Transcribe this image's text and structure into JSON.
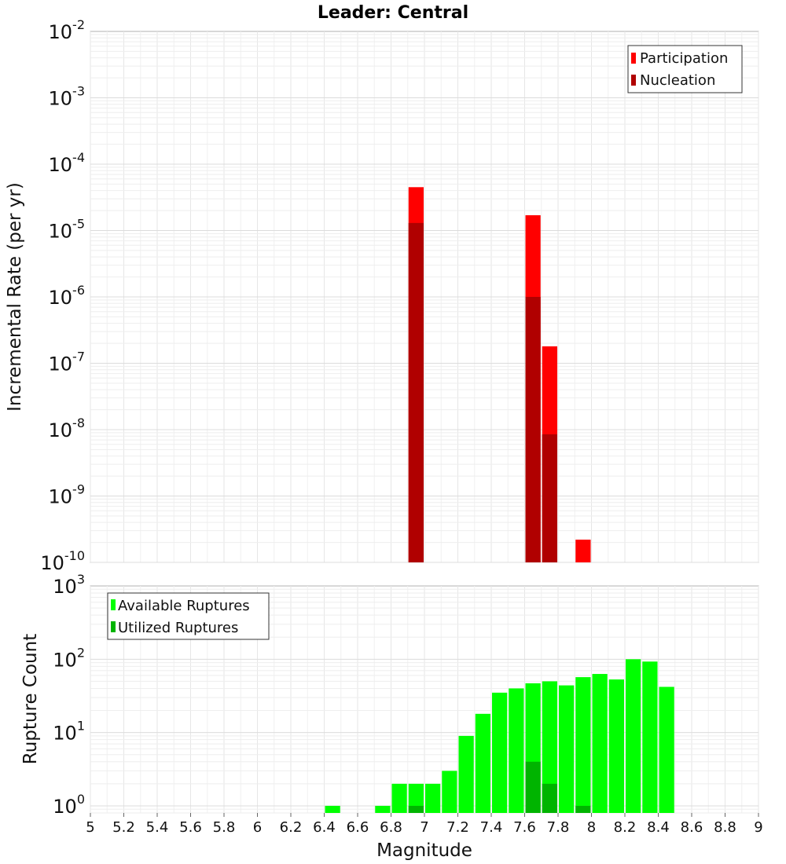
{
  "chart_data": [
    {
      "type": "bar",
      "title": "Leader: Central",
      "xlabel": "",
      "ylabel": "Incremental Rate (per yr)",
      "xlim": [
        5,
        9
      ],
      "ylim": [
        1e-10,
        0.01
      ],
      "y_scale": "log",
      "y_tick_exponents": [
        -10,
        -9,
        -8,
        -7,
        -6,
        -5,
        -4,
        -3,
        -2
      ],
      "bin_width": 0.1,
      "grid": true,
      "legend_position": "top-right",
      "series": [
        {
          "name": "Participation",
          "color": "#ff0000",
          "points": [
            [
              6.95,
              4.5e-05
            ],
            [
              7.65,
              1.7e-05
            ],
            [
              7.75,
              1.8e-07
            ],
            [
              7.95,
              2.2e-10
            ]
          ]
        },
        {
          "name": "Nucleation",
          "color": "#b00000",
          "points": [
            [
              6.95,
              1.3e-05
            ],
            [
              7.65,
              1e-06
            ],
            [
              7.75,
              8.5e-09
            ]
          ]
        }
      ]
    },
    {
      "type": "bar",
      "title": "",
      "xlabel": "Magnitude",
      "ylabel": "Rupture Count",
      "xlim": [
        5,
        9
      ],
      "ylim": [
        0.8,
        1000
      ],
      "y_scale": "log",
      "y_tick_exponents": [
        0,
        1,
        2,
        3
      ],
      "x_ticks": [
        "5",
        "5.2",
        "5.4",
        "5.6",
        "5.8",
        "6",
        "6.2",
        "6.4",
        "6.6",
        "6.8",
        "7",
        "7.2",
        "7.4",
        "7.6",
        "7.8",
        "8",
        "8.2",
        "8.4",
        "8.6",
        "8.8",
        "9"
      ],
      "bin_width": 0.1,
      "grid": true,
      "legend_position": "top-left",
      "series": [
        {
          "name": "Available Ruptures",
          "color": "#00ff00",
          "points": [
            [
              6.45,
              1
            ],
            [
              6.75,
              1
            ],
            [
              6.85,
              2
            ],
            [
              6.95,
              2
            ],
            [
              7.05,
              2
            ],
            [
              7.15,
              3
            ],
            [
              7.25,
              9
            ],
            [
              7.35,
              18
            ],
            [
              7.45,
              35
            ],
            [
              7.55,
              40
            ],
            [
              7.65,
              47
            ],
            [
              7.75,
              50
            ],
            [
              7.85,
              44
            ],
            [
              7.95,
              57
            ],
            [
              8.05,
              63
            ],
            [
              8.15,
              53
            ],
            [
              8.25,
              100
            ],
            [
              8.35,
              93
            ],
            [
              8.45,
              42
            ]
          ]
        },
        {
          "name": "Utilized Ruptures",
          "color": "#00b400",
          "points": [
            [
              6.95,
              1
            ],
            [
              7.65,
              4
            ],
            [
              7.75,
              2
            ],
            [
              7.95,
              1
            ]
          ]
        }
      ]
    }
  ]
}
